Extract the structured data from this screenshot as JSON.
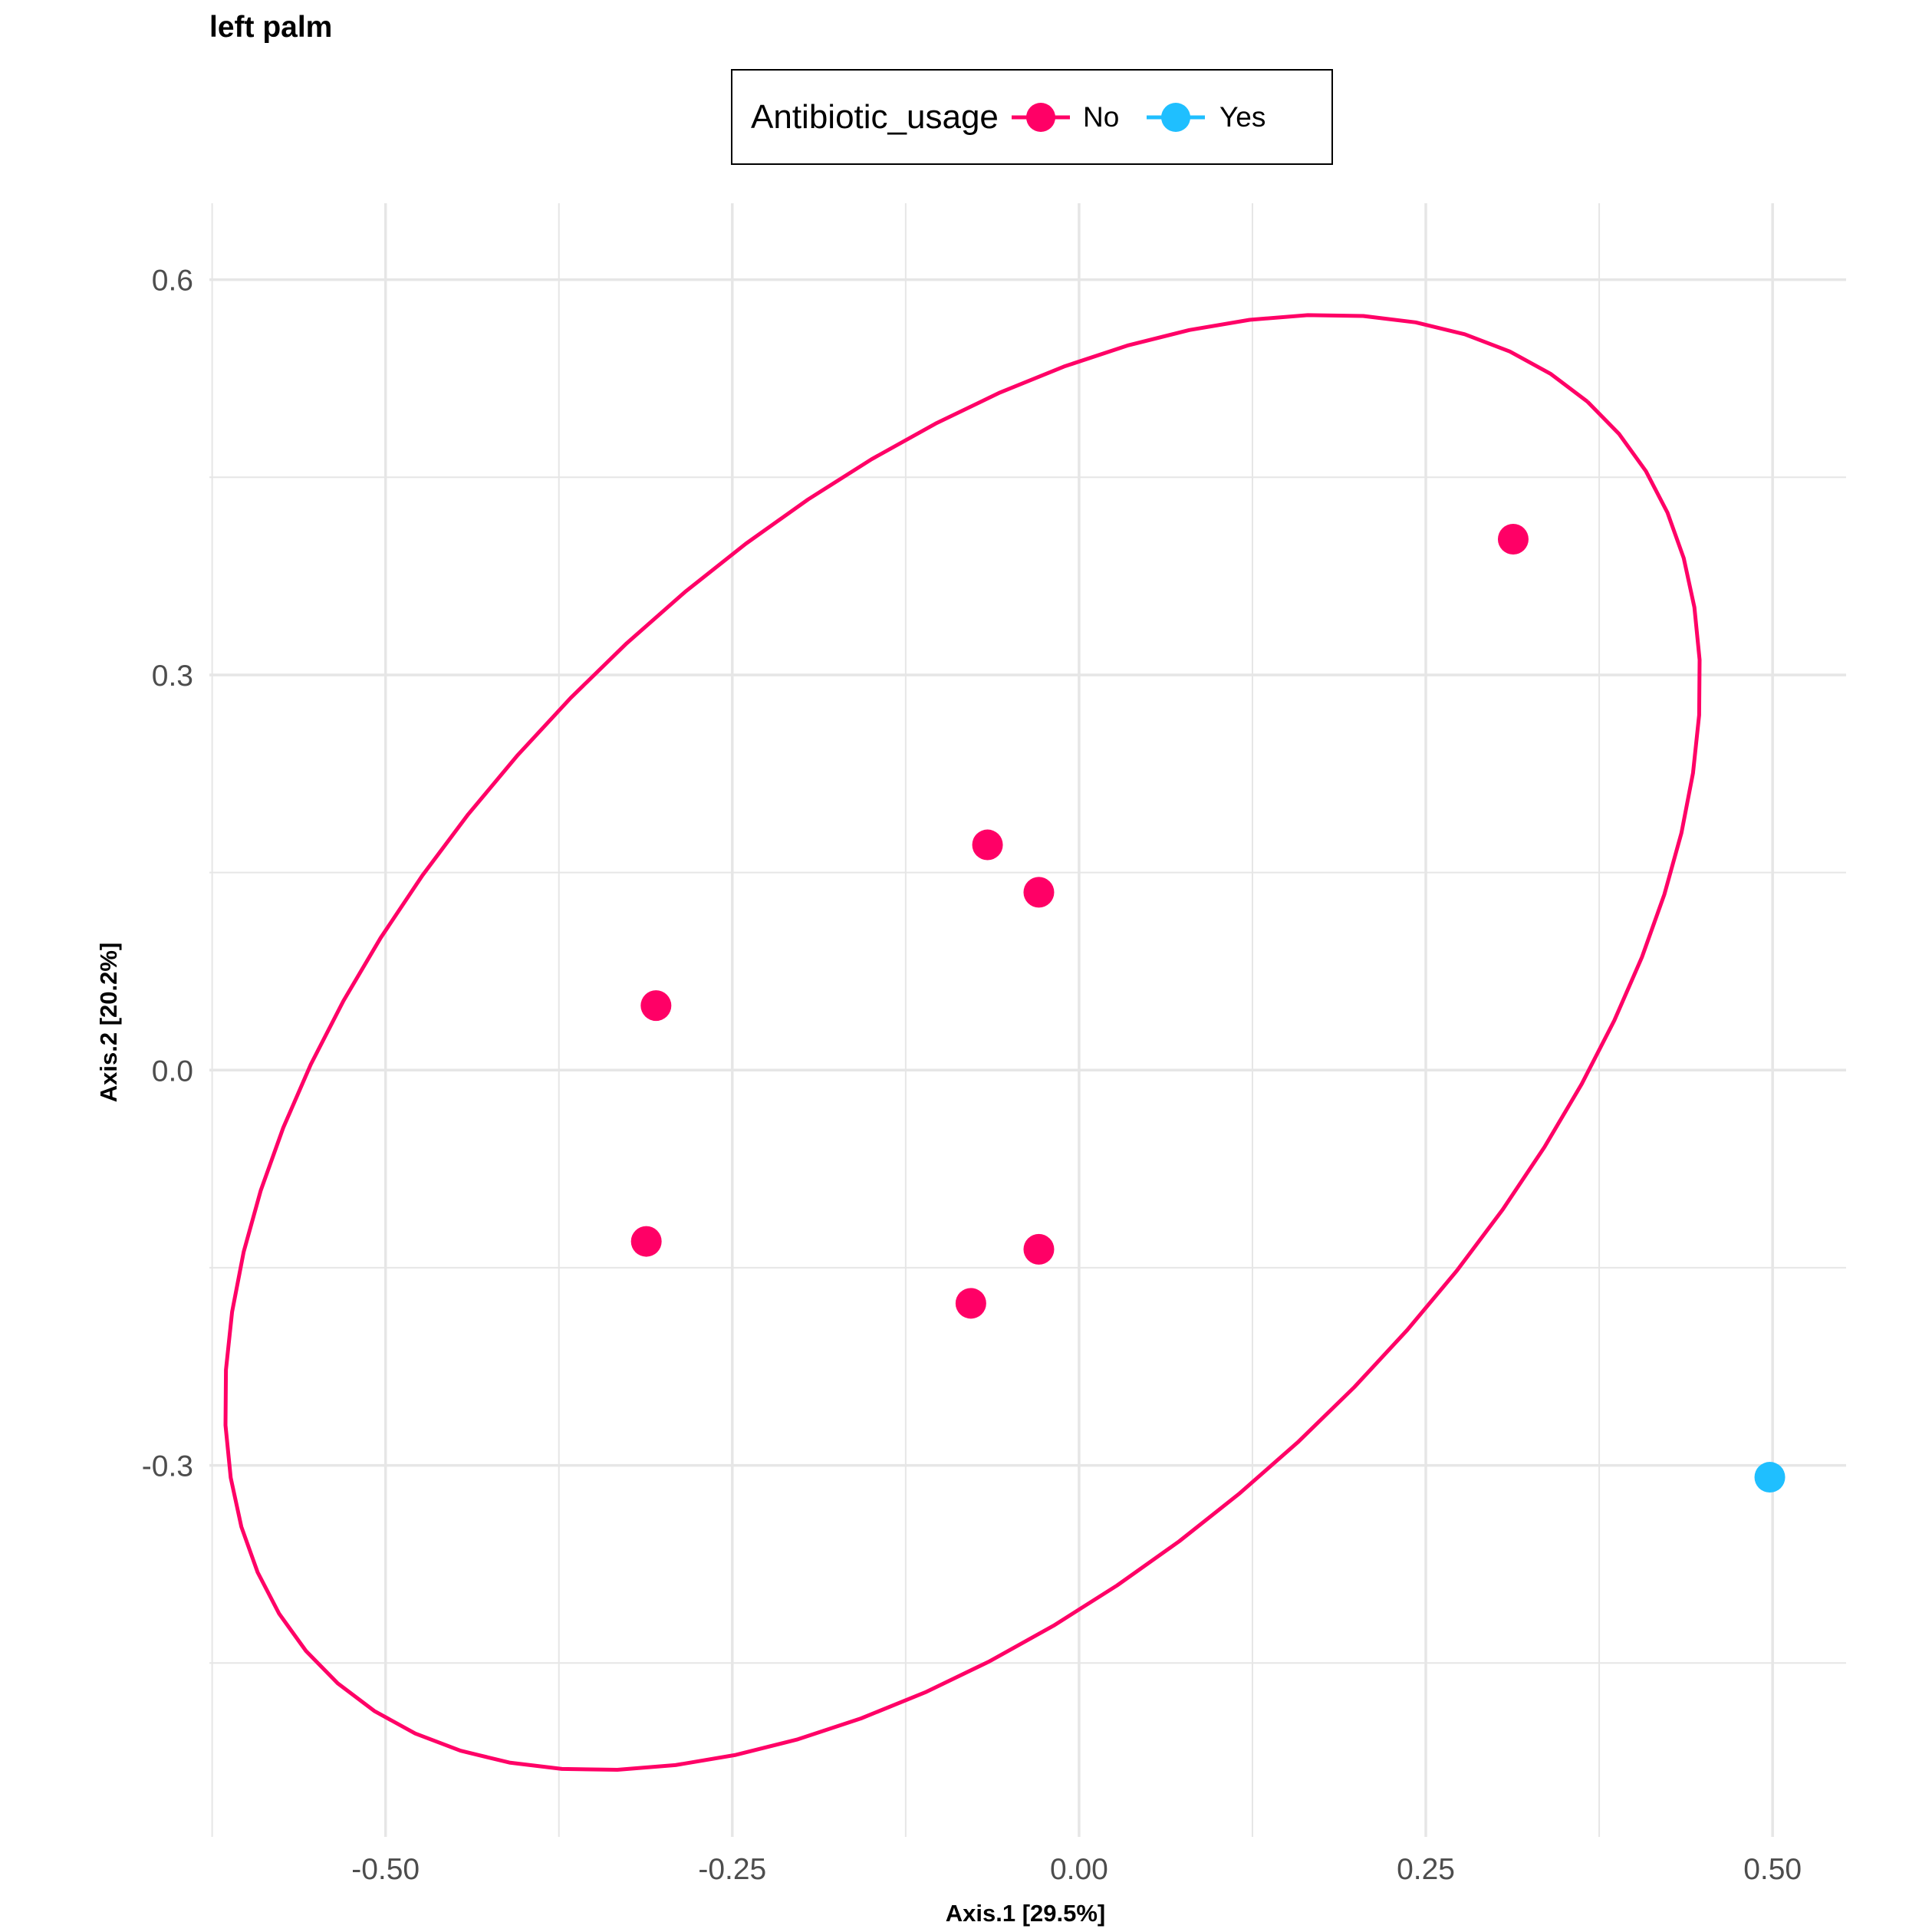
{
  "chart_data": {
    "type": "scatter",
    "title": "left palm",
    "xlabel": "Axis.1   [29.5%]",
    "ylabel": "Axis.2   [20.2%]",
    "xlim": [
      -0.627,
      0.553
    ],
    "ylim": [
      -0.582,
      0.658
    ],
    "x_ticks": [
      -0.5,
      -0.25,
      0.0,
      0.25,
      0.5
    ],
    "x_tick_labels": [
      "-0.50",
      "-0.25",
      "0.00",
      "0.25",
      "0.50"
    ],
    "y_ticks": [
      -0.3,
      0.0,
      0.3,
      0.6
    ],
    "y_tick_labels": [
      "-0.3",
      "0.0",
      "0.3",
      "0.6"
    ],
    "grid": true,
    "legend": {
      "title": "Antibiotic_usage",
      "position": "top",
      "entries": [
        {
          "label": "No",
          "color": "#FF0066"
        },
        {
          "label": "Yes",
          "color": "#1FBFFF"
        }
      ]
    },
    "series": [
      {
        "name": "No",
        "color": "#FF0066",
        "points": [
          {
            "x": 0.313,
            "y": 0.403
          },
          {
            "x": -0.066,
            "y": 0.171
          },
          {
            "x": -0.029,
            "y": 0.135
          },
          {
            "x": -0.305,
            "y": 0.049
          },
          {
            "x": -0.312,
            "y": -0.13
          },
          {
            "x": -0.029,
            "y": -0.136
          },
          {
            "x": -0.078,
            "y": -0.177
          }
        ],
        "ellipse": {
          "center": [
            -0.084,
            0.021
          ],
          "semi_major": 0.663,
          "semi_minor": 0.385,
          "angle_deg": 47.2
        }
      },
      {
        "name": "Yes",
        "color": "#1FBFFF",
        "points": [
          {
            "x": 0.498,
            "y": -0.309
          }
        ]
      }
    ]
  }
}
